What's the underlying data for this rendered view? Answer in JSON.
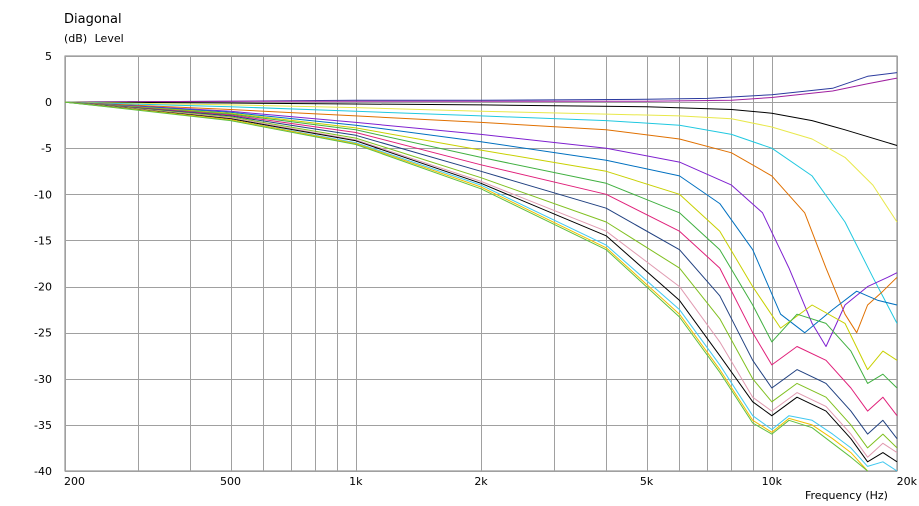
{
  "chart_data": {
    "type": "line",
    "title": "Diagonal",
    "ylabel_unit": "(dB)",
    "ylabel": "Level",
    "xlabel": "Frequency",
    "xlabel_unit": "(Hz)",
    "xscale": "log",
    "xlim": [
      200,
      20000
    ],
    "ylim": [
      -40,
      5
    ],
    "grid": true,
    "legend": "none",
    "y_ticks": [
      5,
      0,
      -5,
      -10,
      -15,
      -20,
      -25,
      -30,
      -35,
      -40
    ],
    "x_tick_labels": [
      {
        "value": 200,
        "label": "200"
      },
      {
        "value": 500,
        "label": "500"
      },
      {
        "value": 1000,
        "label": "1k"
      },
      {
        "value": 2000,
        "label": "2k"
      },
      {
        "value": 5000,
        "label": "5k"
      },
      {
        "value": 10000,
        "label": "10k"
      },
      {
        "value": 20000,
        "label": "20k"
      }
    ],
    "x_minor_gridlines": [
      300,
      400,
      600,
      700,
      800,
      900,
      3000,
      4000,
      6000,
      7000,
      8000,
      9000
    ],
    "series": [
      {
        "color": "#2b3a9e",
        "points": [
          [
            200,
            0
          ],
          [
            500,
            0.1
          ],
          [
            1000,
            0.2
          ],
          [
            2000,
            0.2
          ],
          [
            5000,
            0.3
          ],
          [
            7000,
            0.4
          ],
          [
            10000,
            0.8
          ],
          [
            14000,
            1.5
          ],
          [
            17000,
            2.8
          ],
          [
            20000,
            3.2
          ]
        ]
      },
      {
        "color": "#a020a0",
        "points": [
          [
            200,
            0
          ],
          [
            500,
            0.1
          ],
          [
            1000,
            0.1
          ],
          [
            2000,
            0.1
          ],
          [
            5000,
            0.1
          ],
          [
            8000,
            0.2
          ],
          [
            10000,
            0.5
          ],
          [
            14000,
            1.2
          ],
          [
            17000,
            2.0
          ],
          [
            20000,
            2.6
          ]
        ]
      },
      {
        "color": "#000000",
        "points": [
          [
            200,
            0
          ],
          [
            500,
            -0.1
          ],
          [
            1000,
            -0.2
          ],
          [
            2000,
            -0.3
          ],
          [
            5000,
            -0.5
          ],
          [
            8000,
            -0.8
          ],
          [
            10000,
            -1.2
          ],
          [
            12500,
            -2.0
          ],
          [
            15000,
            -3.0
          ],
          [
            20000,
            -4.7
          ]
        ]
      },
      {
        "color": "#e8e84a",
        "points": [
          [
            200,
            0
          ],
          [
            500,
            -0.3
          ],
          [
            1000,
            -0.6
          ],
          [
            2000,
            -1.0
          ],
          [
            4000,
            -1.3
          ],
          [
            6000,
            -1.5
          ],
          [
            8000,
            -1.8
          ],
          [
            10000,
            -2.7
          ],
          [
            12500,
            -4.0
          ],
          [
            15000,
            -6.0
          ],
          [
            17500,
            -9.0
          ],
          [
            20000,
            -13.0
          ]
        ]
      },
      {
        "color": "#20c8e0",
        "points": [
          [
            200,
            0
          ],
          [
            500,
            -0.5
          ],
          [
            1000,
            -1.0
          ],
          [
            2000,
            -1.5
          ],
          [
            4000,
            -2.0
          ],
          [
            6000,
            -2.5
          ],
          [
            8000,
            -3.5
          ],
          [
            10000,
            -5.0
          ],
          [
            12500,
            -8.0
          ],
          [
            15000,
            -13.0
          ],
          [
            17500,
            -19.0
          ],
          [
            20000,
            -24.0
          ]
        ]
      },
      {
        "color": "#e07000",
        "points": [
          [
            200,
            0
          ],
          [
            500,
            -0.8
          ],
          [
            1000,
            -1.5
          ],
          [
            2000,
            -2.2
          ],
          [
            4000,
            -3.0
          ],
          [
            6000,
            -4.0
          ],
          [
            8000,
            -5.5
          ],
          [
            10000,
            -8.0
          ],
          [
            12000,
            -12.0
          ],
          [
            13500,
            -18.0
          ],
          [
            15000,
            -23.0
          ],
          [
            16000,
            -25.0
          ],
          [
            17000,
            -22.0
          ],
          [
            18500,
            -20.5
          ],
          [
            20000,
            -19.0
          ]
        ]
      },
      {
        "color": "#7f20d0",
        "points": [
          [
            200,
            0
          ],
          [
            500,
            -1.0
          ],
          [
            1000,
            -2.2
          ],
          [
            2000,
            -3.5
          ],
          [
            4000,
            -5.0
          ],
          [
            6000,
            -6.5
          ],
          [
            8000,
            -9.0
          ],
          [
            9500,
            -12.0
          ],
          [
            11000,
            -18.0
          ],
          [
            12500,
            -24.0
          ],
          [
            13500,
            -26.5
          ],
          [
            15000,
            -22.0
          ],
          [
            17000,
            -20.0
          ],
          [
            19000,
            -19.0
          ],
          [
            20000,
            -18.5
          ]
        ]
      },
      {
        "color": "#0070c0",
        "points": [
          [
            200,
            0
          ],
          [
            500,
            -1.1
          ],
          [
            1000,
            -2.5
          ],
          [
            2000,
            -4.3
          ],
          [
            4000,
            -6.3
          ],
          [
            6000,
            -8.0
          ],
          [
            7500,
            -11.0
          ],
          [
            9000,
            -16.0
          ],
          [
            10500,
            -23.0
          ],
          [
            12000,
            -25.0
          ],
          [
            14000,
            -22.5
          ],
          [
            16000,
            -20.5
          ],
          [
            18000,
            -21.5
          ],
          [
            20000,
            -22.0
          ]
        ]
      },
      {
        "color": "#c8d000",
        "points": [
          [
            200,
            0
          ],
          [
            500,
            -1.2
          ],
          [
            1000,
            -2.8
          ],
          [
            2000,
            -5.2
          ],
          [
            4000,
            -7.5
          ],
          [
            6000,
            -10.0
          ],
          [
            7500,
            -14.0
          ],
          [
            9000,
            -20.0
          ],
          [
            10500,
            -24.5
          ],
          [
            12500,
            -22.0
          ],
          [
            15000,
            -24.0
          ],
          [
            17000,
            -29.0
          ],
          [
            18500,
            -27.0
          ],
          [
            20000,
            -28.0
          ]
        ]
      },
      {
        "color": "#40b040",
        "points": [
          [
            200,
            0
          ],
          [
            500,
            -1.3
          ],
          [
            1000,
            -3.0
          ],
          [
            2000,
            -6.0
          ],
          [
            4000,
            -8.8
          ],
          [
            6000,
            -12.0
          ],
          [
            7500,
            -16.0
          ],
          [
            9000,
            -22.0
          ],
          [
            10000,
            -26.0
          ],
          [
            11500,
            -23.0
          ],
          [
            13500,
            -24.0
          ],
          [
            15500,
            -27.0
          ],
          [
            17000,
            -30.5
          ],
          [
            18500,
            -29.5
          ],
          [
            20000,
            -31.0
          ]
        ]
      },
      {
        "color": "#e0207a",
        "points": [
          [
            200,
            0
          ],
          [
            500,
            -1.4
          ],
          [
            1000,
            -3.3
          ],
          [
            2000,
            -6.8
          ],
          [
            4000,
            -10.0
          ],
          [
            6000,
            -14.0
          ],
          [
            7500,
            -18.0
          ],
          [
            9000,
            -25.0
          ],
          [
            10000,
            -28.5
          ],
          [
            11500,
            -26.5
          ],
          [
            13500,
            -28.0
          ],
          [
            15500,
            -31.0
          ],
          [
            17000,
            -33.5
          ],
          [
            18500,
            -32.0
          ],
          [
            20000,
            -34.0
          ]
        ]
      },
      {
        "color": "#204080",
        "points": [
          [
            200,
            0
          ],
          [
            500,
            -1.5
          ],
          [
            1000,
            -3.6
          ],
          [
            2000,
            -7.5
          ],
          [
            4000,
            -11.5
          ],
          [
            6000,
            -16.0
          ],
          [
            7500,
            -21.0
          ],
          [
            9000,
            -28.0
          ],
          [
            10000,
            -31.0
          ],
          [
            11500,
            -29.0
          ],
          [
            13500,
            -30.5
          ],
          [
            15500,
            -33.5
          ],
          [
            17000,
            -36.0
          ],
          [
            18500,
            -34.5
          ],
          [
            20000,
            -36.5
          ]
        ]
      },
      {
        "color": "#80c020",
        "points": [
          [
            200,
            0
          ],
          [
            500,
            -1.6
          ],
          [
            1000,
            -3.9
          ],
          [
            2000,
            -8.2
          ],
          [
            4000,
            -13.0
          ],
          [
            6000,
            -18.0
          ],
          [
            7500,
            -23.5
          ],
          [
            9000,
            -30.0
          ],
          [
            10000,
            -32.5
          ],
          [
            11500,
            -30.5
          ],
          [
            13500,
            -32.0
          ],
          [
            15500,
            -35.0
          ],
          [
            17000,
            -37.5
          ],
          [
            18500,
            -36.0
          ],
          [
            20000,
            -37.5
          ]
        ]
      },
      {
        "color": "#e09ab0",
        "points": [
          [
            200,
            0
          ],
          [
            500,
            -1.7
          ],
          [
            1000,
            -4.1
          ],
          [
            2000,
            -8.6
          ],
          [
            4000,
            -14.0
          ],
          [
            6000,
            -20.0
          ],
          [
            7500,
            -26.0
          ],
          [
            9000,
            -32.0
          ],
          [
            10000,
            -33.5
          ],
          [
            11500,
            -31.5
          ],
          [
            13500,
            -33.0
          ],
          [
            15500,
            -36.0
          ],
          [
            17000,
            -38.5
          ],
          [
            18500,
            -37.0
          ],
          [
            20000,
            -38.0
          ]
        ]
      },
      {
        "color": "#000000",
        "points": [
          [
            200,
            0
          ],
          [
            500,
            -1.8
          ],
          [
            1000,
            -4.2
          ],
          [
            2000,
            -8.8
          ],
          [
            4000,
            -14.5
          ],
          [
            6000,
            -21.5
          ],
          [
            7500,
            -27.5
          ],
          [
            9000,
            -32.5
          ],
          [
            10000,
            -34.0
          ],
          [
            11500,
            -32.0
          ],
          [
            13500,
            -33.5
          ],
          [
            15500,
            -36.5
          ],
          [
            17000,
            -39.0
          ],
          [
            18500,
            -38.0
          ],
          [
            20000,
            -39.0
          ]
        ]
      },
      {
        "color": "#40c8f0",
        "points": [
          [
            200,
            0
          ],
          [
            500,
            -1.9
          ],
          [
            1000,
            -4.4
          ],
          [
            2000,
            -9.0
          ],
          [
            4000,
            -15.5
          ],
          [
            6000,
            -22.5
          ],
          [
            7500,
            -28.5
          ],
          [
            9000,
            -34.0
          ],
          [
            10000,
            -35.5
          ],
          [
            11000,
            -34.0
          ],
          [
            12500,
            -34.5
          ],
          [
            14000,
            -36.0
          ],
          [
            15500,
            -37.5
          ],
          [
            17000,
            -39.5
          ],
          [
            18500,
            -39.0
          ],
          [
            20000,
            -40.0
          ]
        ]
      },
      {
        "color": "#f0c000",
        "points": [
          [
            200,
            0
          ],
          [
            500,
            -1.9
          ],
          [
            1000,
            -4.5
          ],
          [
            2000,
            -9.2
          ],
          [
            4000,
            -15.8
          ],
          [
            6000,
            -23.0
          ],
          [
            7500,
            -29.0
          ],
          [
            9000,
            -34.5
          ],
          [
            10000,
            -35.8
          ],
          [
            11000,
            -34.3
          ],
          [
            12500,
            -35.0
          ],
          [
            14000,
            -36.5
          ],
          [
            15500,
            -38.0
          ],
          [
            17000,
            -40.0
          ]
        ]
      },
      {
        "color": "#60c040",
        "points": [
          [
            200,
            0
          ],
          [
            500,
            -2.0
          ],
          [
            1000,
            -4.6
          ],
          [
            2000,
            -9.4
          ],
          [
            4000,
            -16.0
          ],
          [
            6000,
            -23.3
          ],
          [
            7500,
            -29.3
          ],
          [
            9000,
            -34.8
          ],
          [
            10000,
            -36.0
          ],
          [
            11000,
            -34.5
          ],
          [
            12500,
            -35.3
          ],
          [
            14000,
            -37.0
          ],
          [
            15500,
            -38.5
          ],
          [
            17000,
            -40.0
          ]
        ]
      }
    ]
  }
}
